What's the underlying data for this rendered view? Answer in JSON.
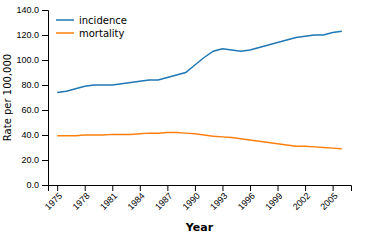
{
  "chart_data": {
    "type": "line",
    "xlabel": "Year",
    "ylabel": "Rate per 100,000",
    "x": [
      1975,
      1976,
      1977,
      1978,
      1979,
      1980,
      1981,
      1982,
      1983,
      1984,
      1985,
      1986,
      1987,
      1988,
      1989,
      1990,
      1991,
      1992,
      1993,
      1994,
      1995,
      1996,
      1997,
      1998,
      1999,
      2000,
      2001,
      2002,
      2003,
      2004,
      2005,
      2006
    ],
    "series": [
      {
        "name": "incidence",
        "values": [
          74,
          75,
          77,
          79,
          80,
          80,
          80,
          81,
          82,
          83,
          84,
          84,
          86,
          88,
          90,
          96,
          102,
          107,
          109,
          108,
          107,
          108,
          110,
          112,
          114,
          116,
          118,
          119,
          120,
          120,
          122,
          123
        ]
      },
      {
        "name": "mortality",
        "values": [
          39.5,
          39.5,
          39.5,
          40,
          40,
          40,
          40.5,
          40.5,
          40.5,
          41,
          41.5,
          41.5,
          42,
          42,
          41.5,
          41,
          40,
          39,
          38.5,
          38,
          37,
          36,
          35,
          34,
          33,
          32,
          31,
          31,
          30.5,
          30,
          29.5,
          29
        ]
      }
    ],
    "xlim": [
      1974,
      2007
    ],
    "xticks": [
      1975,
      1978,
      1981,
      1984,
      1987,
      1990,
      1993,
      1996,
      1999,
      2002,
      2005
    ],
    "ylim": [
      0,
      140
    ],
    "yticks": [
      {
        "value": 0,
        "label": "0.0"
      },
      {
        "value": 20,
        "label": "20.0"
      },
      {
        "value": 40,
        "label": "40.0"
      },
      {
        "value": 60,
        "label": "60.0"
      },
      {
        "value": 80,
        "label": "80.0"
      },
      {
        "value": 100,
        "label": "100.0"
      },
      {
        "value": 120,
        "label": "120.0"
      },
      {
        "value": 140,
        "label": "140.0"
      }
    ],
    "legend": "upper left"
  }
}
